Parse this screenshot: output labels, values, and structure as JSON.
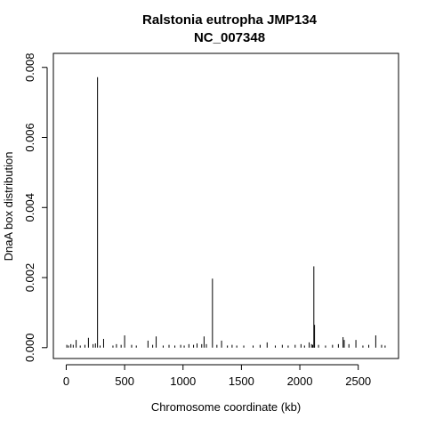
{
  "chart_data": {
    "type": "spike",
    "title": "Ralstonia eutropha JMP134",
    "subtitle": "NC_007348",
    "x_label": "Chromosome coordinate (kb)",
    "y_label": "DnaA box distribution",
    "color": "#000000",
    "xlim": [
      -110,
      2845
    ],
    "ylim": [
      -0.00031,
      0.0084
    ],
    "xticks": [
      0,
      500,
      1000,
      1500,
      2000,
      2500
    ],
    "yticks": [
      {
        "value": 0,
        "label": "0.000"
      },
      {
        "value": 0.002,
        "label": "0.002"
      },
      {
        "value": 0.004,
        "label": "0.004"
      },
      {
        "value": 0.006,
        "label": "0.006"
      },
      {
        "value": 0.008,
        "label": "0.008"
      }
    ],
    "x": [
      5,
      20,
      40,
      60,
      85,
      120,
      160,
      190,
      230,
      250,
      268,
      290,
      320,
      400,
      430,
      470,
      500,
      560,
      600,
      700,
      740,
      770,
      830,
      880,
      930,
      980,
      1010,
      1050,
      1090,
      1120,
      1160,
      1180,
      1200,
      1252,
      1290,
      1330,
      1380,
      1420,
      1460,
      1520,
      1600,
      1660,
      1720,
      1790,
      1850,
      1900,
      1960,
      2010,
      2040,
      2080,
      2100,
      2110,
      2120,
      2126,
      2160,
      2220,
      2280,
      2330,
      2370,
      2380,
      2420,
      2480,
      2540,
      2590,
      2650,
      2700,
      2730
    ],
    "values": [
      8e-05,
      6e-05,
      0.0001,
      8e-05,
      0.00022,
      6e-05,
      8e-05,
      0.00028,
      0.0001,
      0.00012,
      0.00772,
      6e-05,
      0.00025,
      6e-05,
      0.0001,
      8e-05,
      0.00035,
      8e-05,
      6e-05,
      0.0002,
      8e-05,
      0.00032,
      6e-05,
      8e-05,
      6e-05,
      8e-05,
      6e-05,
      0.0001,
      8e-05,
      0.00012,
      0.0001,
      0.00032,
      0.0001,
      0.00197,
      8e-05,
      0.0002,
      6e-05,
      8e-05,
      6e-05,
      6e-05,
      6e-05,
      8e-05,
      0.00015,
      6e-05,
      8e-05,
      6e-05,
      8e-05,
      0.0001,
      6e-05,
      0.00015,
      0.0001,
      8e-05,
      0.00232,
      0.00065,
      8e-05,
      6e-05,
      8e-05,
      0.0001,
      0.0003,
      0.00022,
      0.0001,
      0.00022,
      6e-05,
      8e-05,
      0.00035,
      8e-05,
      6e-05
    ]
  }
}
